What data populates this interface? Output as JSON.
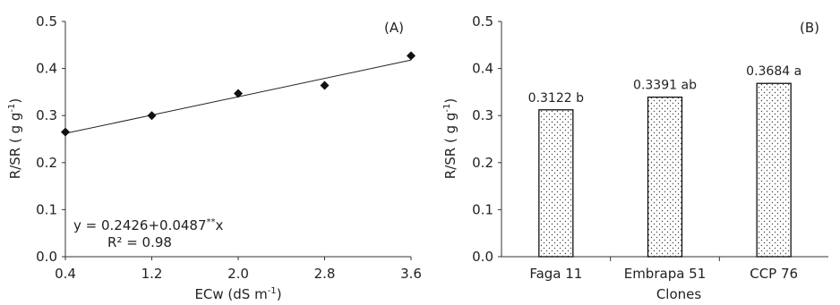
{
  "chart_data": [
    {
      "type": "scatter",
      "panel_label": "(A)",
      "x": [
        0.4,
        1.2,
        2.0,
        2.8,
        3.6
      ],
      "y": [
        0.265,
        0.3,
        0.347,
        0.364,
        0.427
      ],
      "x_ticks": [
        "0.4",
        "1.2",
        "2.0",
        "2.8",
        "3.6"
      ],
      "y_ticks": [
        "0.0",
        "0.1",
        "0.2",
        "0.3",
        "0.4",
        "0.5"
      ],
      "xlim": [
        0.4,
        3.6
      ],
      "ylim": [
        0,
        0.5
      ],
      "xlabel": {
        "main": "ECw (dS m",
        "sup": "-1",
        "end": ")"
      },
      "ylabel": {
        "main": "R/SR  ( g g",
        "sup": "-1",
        "end": ")"
      },
      "trendline": {
        "intercept": 0.2426,
        "slope": 0.0487
      },
      "equation": {
        "main": "y = 0.2426+0.0487",
        "sup": "**",
        "end": "x"
      },
      "r2": "R² = 0.98",
      "marker": "diamond",
      "grid": false
    },
    {
      "type": "bar",
      "panel_label": "(B)",
      "categories": [
        "Faga 11",
        "Embrapa 51",
        "CCP 76"
      ],
      "values": [
        0.3122,
        0.3391,
        0.3684
      ],
      "data_labels": [
        "0.3122 b",
        "0.3391 ab",
        "0.3684 a"
      ],
      "y_ticks": [
        "0.0",
        "0.1",
        "0.2",
        "0.3",
        "0.4",
        "0.5"
      ],
      "ylim": [
        0,
        0.5
      ],
      "xlabel": "Clones",
      "ylabel": {
        "main": "R/SR  ( g g",
        "sup": "-1",
        "end": ")"
      },
      "bar_fill": "dotted",
      "grid": false
    }
  ]
}
